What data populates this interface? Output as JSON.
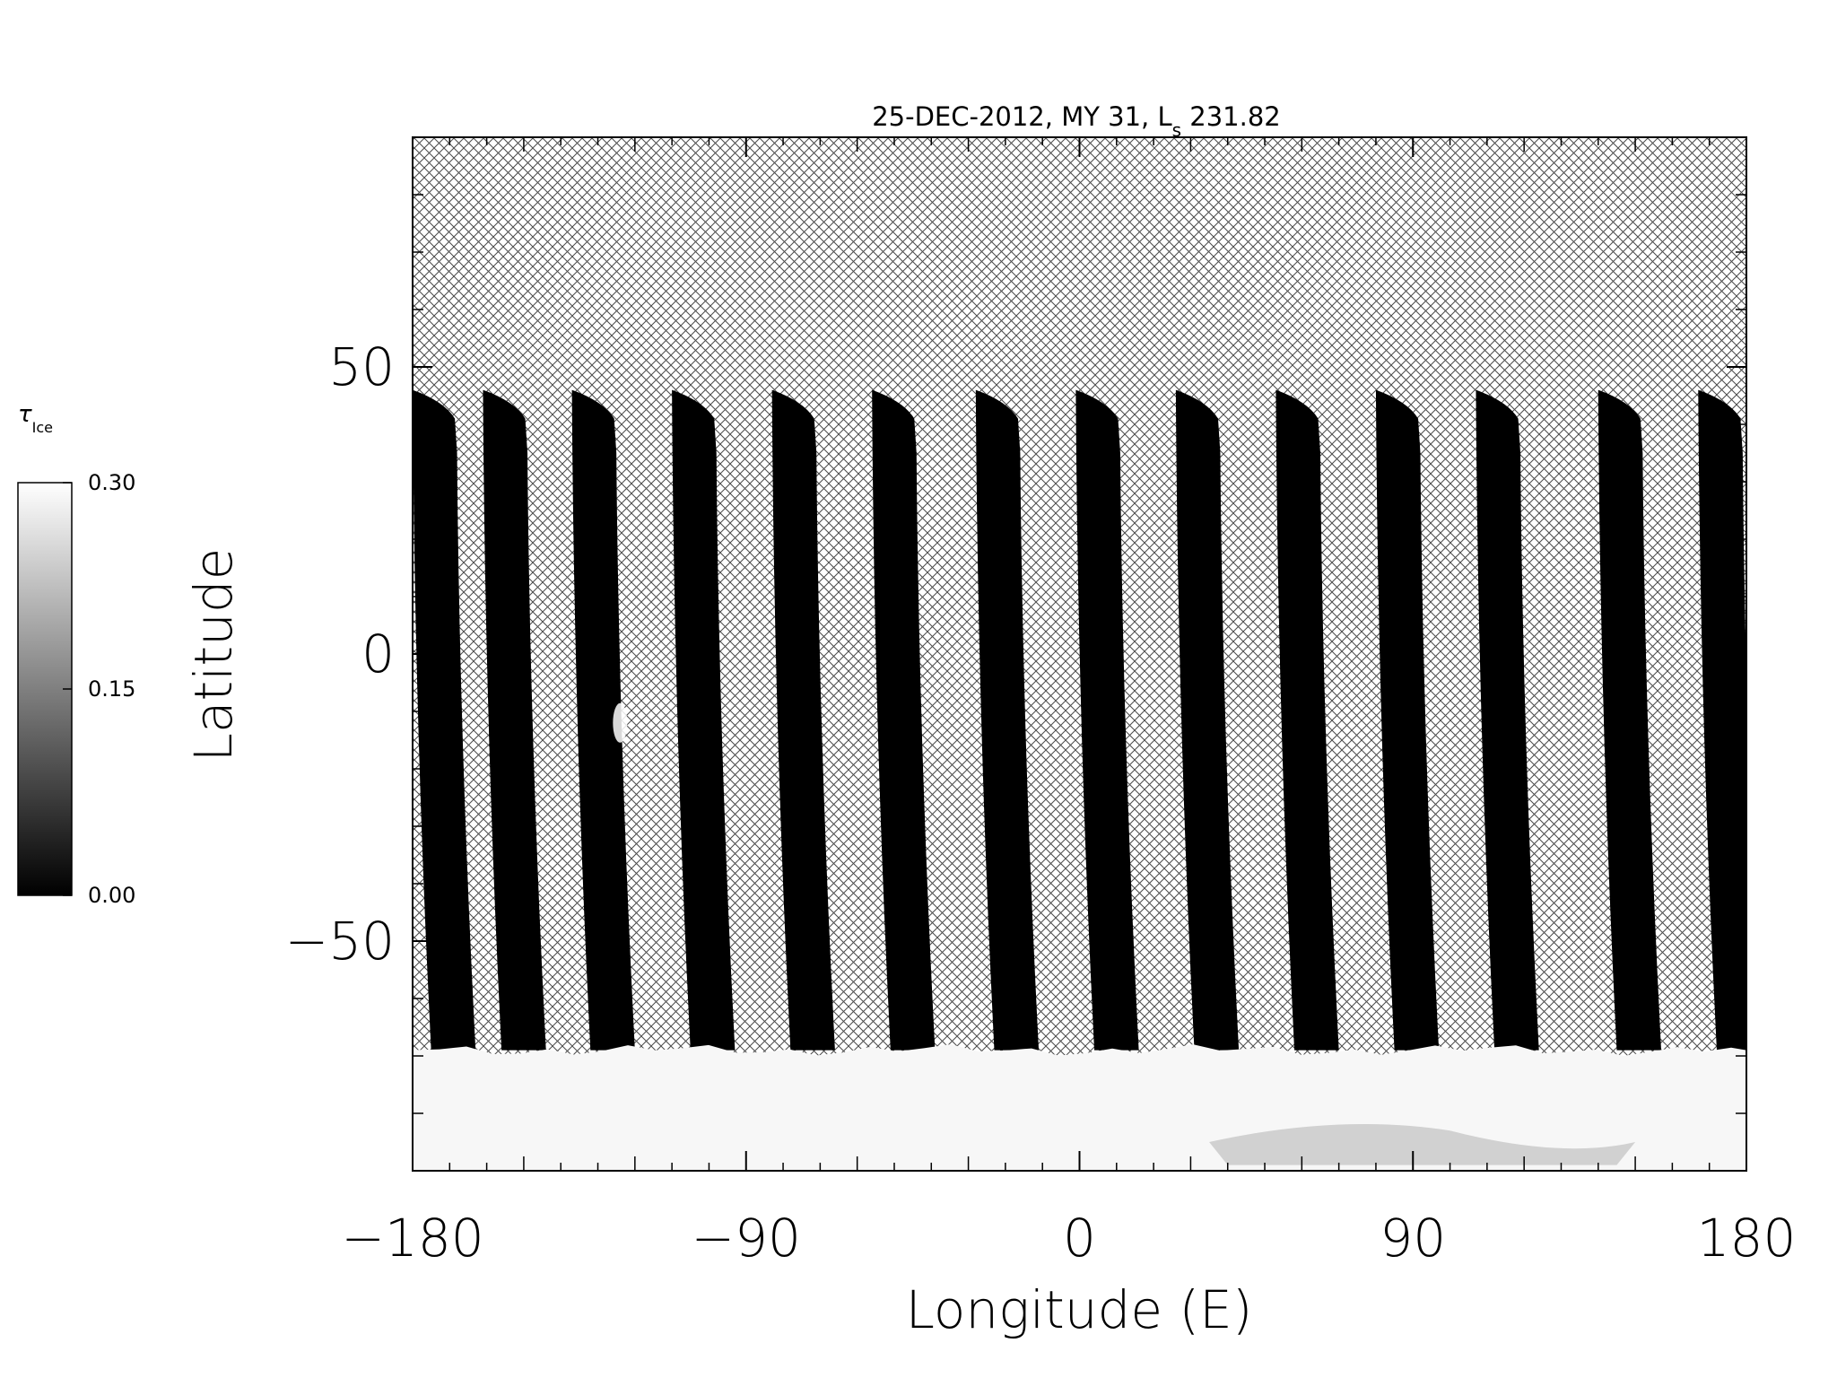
{
  "chart_data": {
    "type": "heatmap",
    "title_main": "25-DEC-2012, MY 31,  L",
    "title_sub": "s",
    "title_value": " 231.82",
    "xlabel": "Longitude (E)",
    "ylabel": "Latitude",
    "xlim": [
      -180,
      180
    ],
    "ylim": [
      -90,
      90
    ],
    "xticks": [
      {
        "value": -180,
        "label": "−180"
      },
      {
        "value": -90,
        "label": "−90"
      },
      {
        "value": 0,
        "label": "0"
      },
      {
        "value": 90,
        "label": "90"
      },
      {
        "value": 180,
        "label": "180"
      }
    ],
    "yticks": [
      {
        "value": 50,
        "label": "50"
      },
      {
        "value": 0,
        "label": "0"
      },
      {
        "value": -50,
        "label": "−50"
      }
    ],
    "colorbar": {
      "label_symbol": "τ",
      "label_sub": "Ice",
      "min": 0.0,
      "max": 0.3,
      "ticks": [
        {
          "value": 0.3,
          "label": "0.30"
        },
        {
          "value": 0.15,
          "label": "0.15"
        },
        {
          "value": 0.0,
          "label": "0.00"
        }
      ],
      "colormap": [
        "#000000",
        "#ffffff"
      ]
    },
    "no_data_pattern": "crosshatch",
    "swaths": {
      "count": 14,
      "start_longitudes_at_top": [
        -180,
        -161,
        -137,
        -110,
        -83,
        -56,
        -28,
        -1,
        26,
        53,
        80,
        107,
        140,
        167
      ],
      "top_latitude": 46,
      "bottom_latitude": -69,
      "width_deg": 12,
      "westward_shift_deg": 14,
      "value": 0.0
    },
    "polar_cap": {
      "lat_range": [
        -90,
        -69
      ],
      "value": 0.3
    },
    "bright_patch": {
      "lon": -124,
      "lat": -12,
      "value": 0.3
    }
  }
}
